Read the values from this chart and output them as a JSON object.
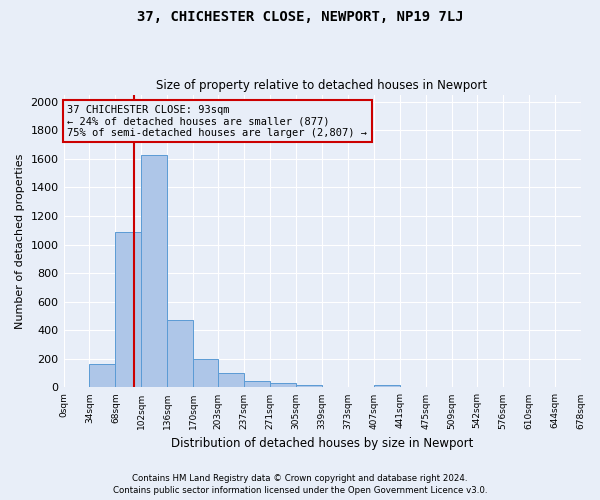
{
  "title": "37, CHICHESTER CLOSE, NEWPORT, NP19 7LJ",
  "subtitle": "Size of property relative to detached houses in Newport",
  "xlabel": "Distribution of detached houses by size in Newport",
  "ylabel": "Number of detached properties",
  "footnote1": "Contains HM Land Registry data © Crown copyright and database right 2024.",
  "footnote2": "Contains public sector information licensed under the Open Government Licence v3.0.",
  "bar_color": "#aec6e8",
  "bar_edge_color": "#5b9bd5",
  "annotation_box_color": "#cc0000",
  "vline_color": "#cc0000",
  "property_size": 93,
  "annotation_text_line1": "37 CHICHESTER CLOSE: 93sqm",
  "annotation_text_line2": "← 24% of detached houses are smaller (877)",
  "annotation_text_line3": "75% of semi-detached houses are larger (2,807) →",
  "bin_edges": [
    0,
    34,
    68,
    102,
    136,
    170,
    203,
    237,
    271,
    305,
    339,
    373,
    407,
    441,
    475,
    509,
    542,
    576,
    610,
    644,
    678
  ],
  "counts": [
    0,
    165,
    1090,
    1630,
    475,
    200,
    100,
    45,
    30,
    20,
    0,
    0,
    20,
    0,
    0,
    0,
    0,
    0,
    0,
    0
  ],
  "ylim": [
    0,
    2050
  ],
  "yticks": [
    0,
    200,
    400,
    600,
    800,
    1000,
    1200,
    1400,
    1600,
    1800,
    2000
  ],
  "background_color": "#e8eef8",
  "grid_color": "#ffffff"
}
